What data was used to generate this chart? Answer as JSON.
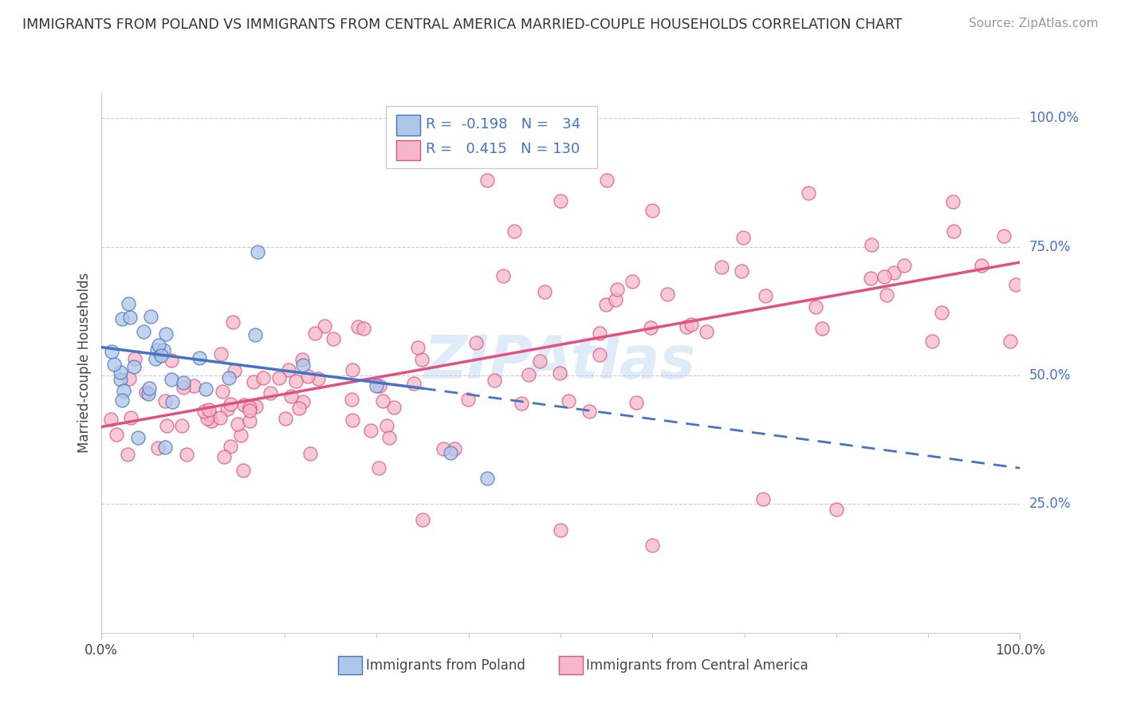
{
  "title": "IMMIGRANTS FROM POLAND VS IMMIGRANTS FROM CENTRAL AMERICA MARRIED-COUPLE HOUSEHOLDS CORRELATION CHART",
  "source": "Source: ZipAtlas.com",
  "ylabel": "Married-couple Households",
  "legend_label1": "Immigrants from Poland",
  "legend_label2": "Immigrants from Central America",
  "R1": -0.198,
  "N1": 34,
  "R2": 0.415,
  "N2": 130,
  "color1": "#aec6e8",
  "color2": "#f4b8c8",
  "line_color1": "#4472c4",
  "line_color2": "#e05080",
  "watermark": "ZIPAtlas",
  "ytick_values": [
    0.25,
    0.5,
    0.75,
    1.0
  ],
  "ytick_labels": [
    "25.0%",
    "50.0%",
    "75.0%",
    "100.0%"
  ],
  "xlim": [
    0.0,
    1.0
  ],
  "ylim": [
    0.0,
    1.05
  ],
  "poland_line_x0": 0.0,
  "poland_line_y0": 0.555,
  "poland_line_x1": 0.35,
  "poland_line_y1": 0.475,
  "poland_line_dash_x0": 0.35,
  "poland_line_dash_y0": 0.475,
  "poland_line_dash_x1": 1.0,
  "poland_line_dash_y1": 0.32,
  "central_line_x0": 0.0,
  "central_line_y0": 0.4,
  "central_line_x1": 1.0,
  "central_line_y1": 0.72
}
